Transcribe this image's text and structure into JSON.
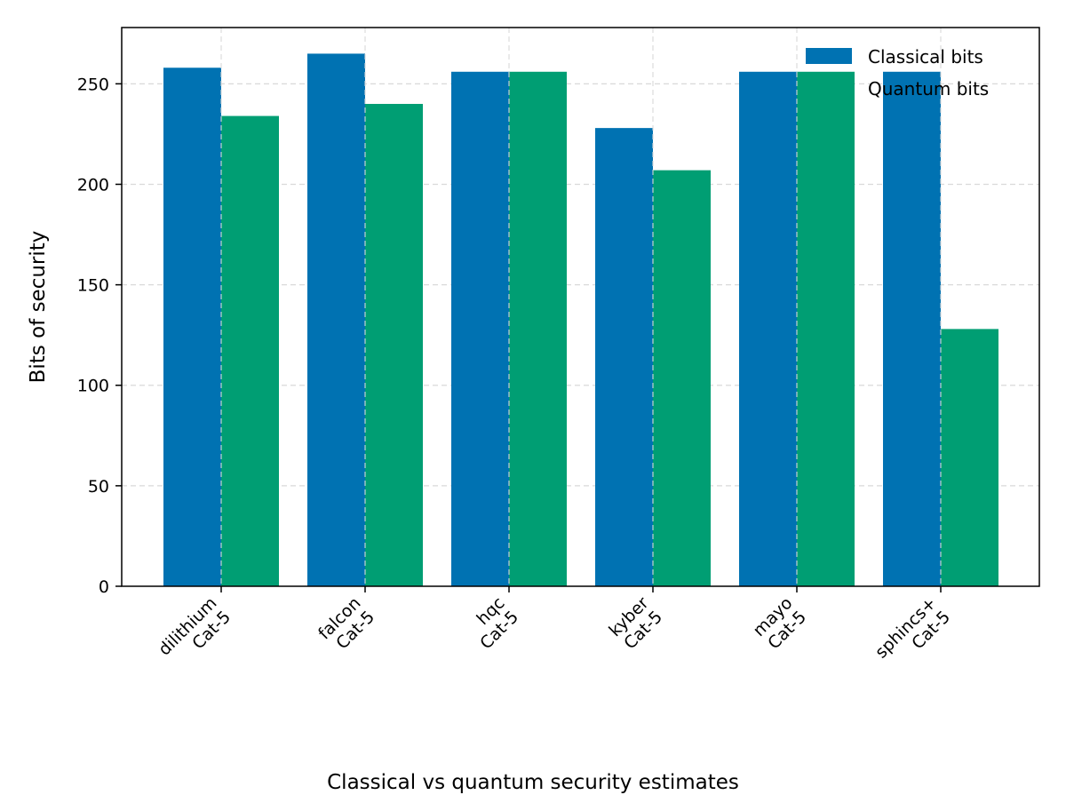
{
  "chart_data": {
    "type": "bar",
    "title": "Classical vs quantum security estimates",
    "xlabel": "",
    "ylabel": "Bits of security",
    "categories": [
      [
        "dilithium",
        "Cat-5"
      ],
      [
        "falcon",
        "Cat-5"
      ],
      [
        "hqc",
        "Cat-5"
      ],
      [
        "kyber",
        "Cat-5"
      ],
      [
        "mayo",
        "Cat-5"
      ],
      [
        "sphincs+",
        "Cat-5"
      ]
    ],
    "series": [
      {
        "name": "Classical bits",
        "color": "#0072b2",
        "values": [
          258,
          265,
          256,
          228,
          256,
          256
        ]
      },
      {
        "name": "Quantum bits",
        "color": "#009e73",
        "values": [
          234,
          240,
          256,
          207,
          256,
          128
        ]
      }
    ],
    "ylim": [
      0,
      278
    ],
    "yticks": [
      0,
      50,
      100,
      150,
      200,
      250
    ],
    "grid": true,
    "legend": "top-right"
  }
}
